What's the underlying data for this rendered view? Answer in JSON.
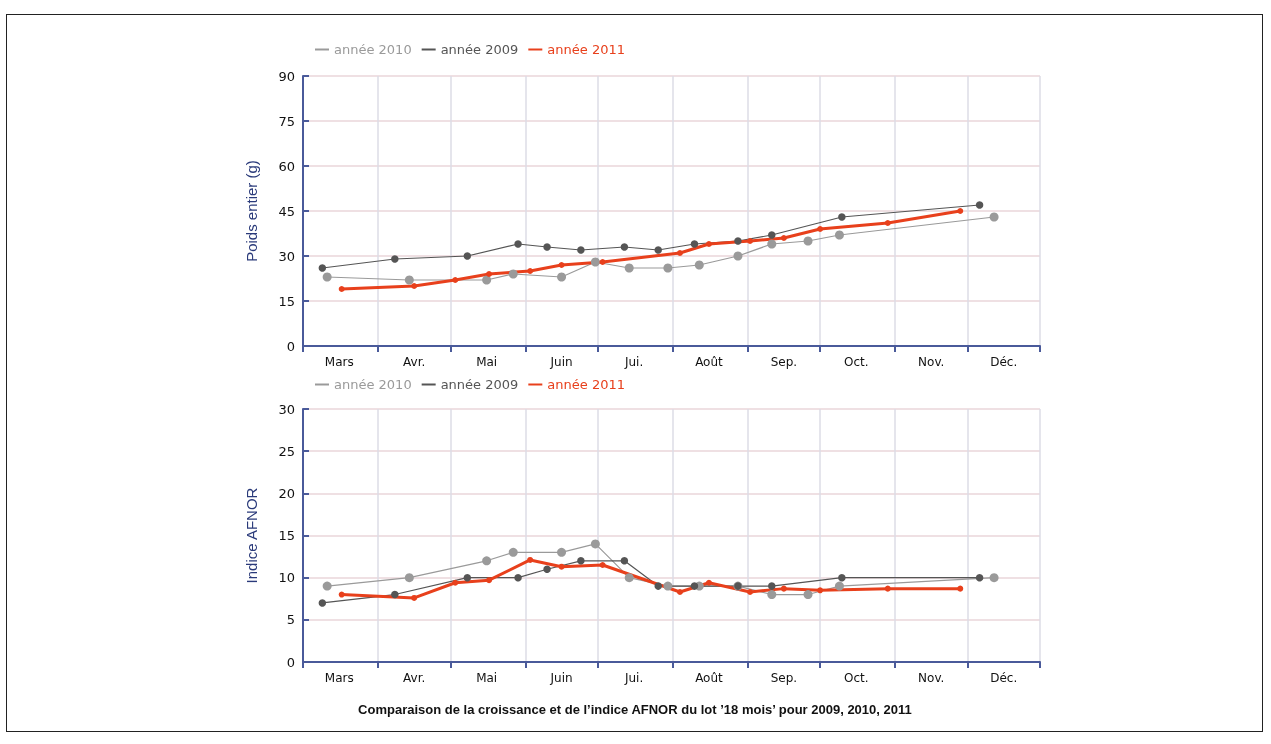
{
  "chart_data": [
    {
      "type": "line",
      "ylabel": "Poids entier (g)",
      "xlim": [
        "--03-01",
        "--12-31"
      ],
      "xticks": [
        {
          "value": "--03-01",
          "label": null
        },
        {
          "value": "--03-16",
          "label": "Mars"
        },
        {
          "value": "--04-01",
          "label": null
        },
        {
          "value": "--04-16",
          "label": "Avr."
        },
        {
          "value": "--05-01",
          "label": null
        },
        {
          "value": "--05-16",
          "label": "Mai"
        },
        {
          "value": "--06-01",
          "label": null
        },
        {
          "value": "--06-16",
          "label": "Juin"
        },
        {
          "value": "--07-01",
          "label": null
        },
        {
          "value": "--07-16",
          "label": "Jui."
        },
        {
          "value": "--08-01",
          "label": null
        },
        {
          "value": "--08-16",
          "label": "Août"
        },
        {
          "value": "--09-01",
          "label": null
        },
        {
          "value": "--09-16",
          "label": "Sep."
        },
        {
          "value": "--10-01",
          "label": null
        },
        {
          "value": "--10-16",
          "label": "Oct."
        },
        {
          "value": "--11-01",
          "label": null
        },
        {
          "value": "--11-16",
          "label": "Nov."
        },
        {
          "value": "--12-01",
          "label": null
        },
        {
          "value": "--12-16",
          "label": "Déc."
        },
        {
          "value": "--12-31",
          "label": null
        }
      ],
      "ylim": [
        0,
        90
      ],
      "yticks": [
        0,
        15,
        30,
        45,
        60,
        75,
        90
      ],
      "grid": true,
      "legend": "top left",
      "marker": "circle",
      "series": [
        {
          "name": "année 2010",
          "color": "#9a9a9a",
          "x": [
            "--03-11",
            "--04-14",
            "--05-16",
            "--05-27",
            "--06-16",
            "--06-30",
            "--07-14",
            "--07-30",
            "--08-12",
            "--08-28",
            "--09-11",
            "--09-26",
            "--10-09",
            "--12-12"
          ],
          "values": [
            23,
            22,
            22,
            24,
            23,
            28,
            26,
            26,
            27,
            30,
            34,
            35,
            37,
            43
          ]
        },
        {
          "name": "année 2009",
          "color": "#555555",
          "x": [
            "--03-09",
            "--04-08",
            "--05-08",
            "--05-29",
            "--06-10",
            "--06-24",
            "--07-12",
            "--07-26",
            "--08-10",
            "--08-28",
            "--09-11",
            "--10-10",
            "--12-06"
          ],
          "values": [
            26,
            29,
            30,
            34,
            33,
            32,
            33,
            32,
            34,
            35,
            37,
            43,
            47
          ]
        },
        {
          "name": "année 2011",
          "color": "#e8401c",
          "x": [
            "--03-17",
            "--04-16",
            "--05-03",
            "--05-17",
            "--06-03",
            "--06-16",
            "--07-03",
            "--08-04",
            "--08-16",
            "--09-02",
            "--09-16",
            "--10-01",
            "--10-29",
            "--11-28"
          ],
          "values": [
            19,
            20,
            22,
            24,
            25,
            27,
            28,
            31,
            34,
            35,
            36,
            39,
            41,
            45
          ]
        }
      ]
    },
    {
      "type": "line",
      "ylabel": "Indice AFNOR",
      "xlim": [
        "--03-01",
        "--12-31"
      ],
      "xticks": [
        {
          "value": "--03-01",
          "label": null
        },
        {
          "value": "--03-16",
          "label": "Mars"
        },
        {
          "value": "--04-01",
          "label": null
        },
        {
          "value": "--04-16",
          "label": "Avr."
        },
        {
          "value": "--05-01",
          "label": null
        },
        {
          "value": "--05-16",
          "label": "Mai"
        },
        {
          "value": "--06-01",
          "label": null
        },
        {
          "value": "--06-16",
          "label": "Juin"
        },
        {
          "value": "--07-01",
          "label": null
        },
        {
          "value": "--07-16",
          "label": "Jui."
        },
        {
          "value": "--08-01",
          "label": null
        },
        {
          "value": "--08-16",
          "label": "Août"
        },
        {
          "value": "--09-01",
          "label": null
        },
        {
          "value": "--09-16",
          "label": "Sep."
        },
        {
          "value": "--10-01",
          "label": null
        },
        {
          "value": "--10-16",
          "label": "Oct."
        },
        {
          "value": "--11-01",
          "label": null
        },
        {
          "value": "--11-16",
          "label": "Nov."
        },
        {
          "value": "--12-01",
          "label": null
        },
        {
          "value": "--12-16",
          "label": "Déc."
        },
        {
          "value": "--12-31",
          "label": null
        }
      ],
      "ylim": [
        0,
        30
      ],
      "yticks": [
        0,
        5,
        10,
        15,
        20,
        25,
        30
      ],
      "grid": true,
      "legend": "top left",
      "marker": "circle",
      "annotations": [
        "Comparaison de la croissance et de l’indice AFNOR du lot ’18 mois’ pour 2009, 2010, 2011"
      ],
      "series": [
        {
          "name": "année 2010",
          "color": "#9a9a9a",
          "x": [
            "--03-11",
            "--04-14",
            "--05-16",
            "--05-27",
            "--06-16",
            "--06-30",
            "--07-14",
            "--07-30",
            "--08-12",
            "--08-28",
            "--09-11",
            "--09-26",
            "--10-09",
            "--12-12"
          ],
          "values": [
            9,
            10,
            12,
            13,
            13,
            14,
            10,
            9,
            9,
            9,
            8,
            8,
            9,
            10
          ]
        },
        {
          "name": "année 2009",
          "color": "#555555",
          "x": [
            "--03-09",
            "--04-08",
            "--05-08",
            "--05-29",
            "--06-10",
            "--06-24",
            "--07-12",
            "--07-26",
            "--08-10",
            "--08-28",
            "--09-11",
            "--10-10",
            "--12-06"
          ],
          "values": [
            7,
            8,
            10,
            10,
            11,
            12,
            12,
            9,
            9,
            9,
            9,
            10,
            10
          ]
        },
        {
          "name": "année 2011",
          "color": "#e8401c",
          "x": [
            "--03-17",
            "--04-16",
            "--05-03",
            "--05-17",
            "--06-03",
            "--06-16",
            "--07-03",
            "--08-04",
            "--08-16",
            "--09-02",
            "--09-16",
            "--10-01",
            "--10-29",
            "--11-28"
          ],
          "values": [
            8,
            7.6,
            9.4,
            9.7,
            12.1,
            11.3,
            11.5,
            8.3,
            9.4,
            8.3,
            8.7,
            8.5,
            8.7,
            8.7
          ]
        }
      ]
    }
  ]
}
